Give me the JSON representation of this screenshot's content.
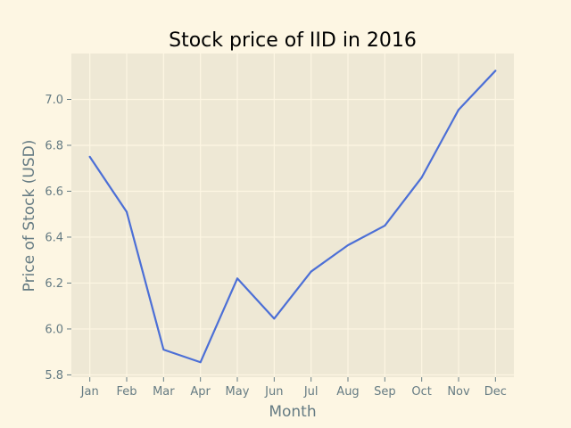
{
  "chart_data": {
    "type": "line",
    "title": "Stock price of IID in 2016",
    "xlabel": "Month",
    "ylabel": "Price of Stock (USD)",
    "categories": [
      "Jan",
      "Feb",
      "Mar",
      "Apr",
      "May",
      "Jun",
      "Jul",
      "Aug",
      "Sep",
      "Oct",
      "Nov",
      "Dec"
    ],
    "series": [
      {
        "values": [
          6.75,
          6.51,
          5.91,
          5.855,
          6.22,
          6.045,
          6.25,
          6.365,
          6.45,
          6.66,
          6.955,
          7.125
        ],
        "color": "#4c6fd6"
      }
    ],
    "ylim": [
      5.79,
      7.2
    ],
    "yticks": [
      5.8,
      6.0,
      6.2,
      6.4,
      6.6,
      6.8,
      7.0
    ],
    "grid": true,
    "plot_background": "#eee8d5",
    "figure_background": "#fdf6e3"
  }
}
